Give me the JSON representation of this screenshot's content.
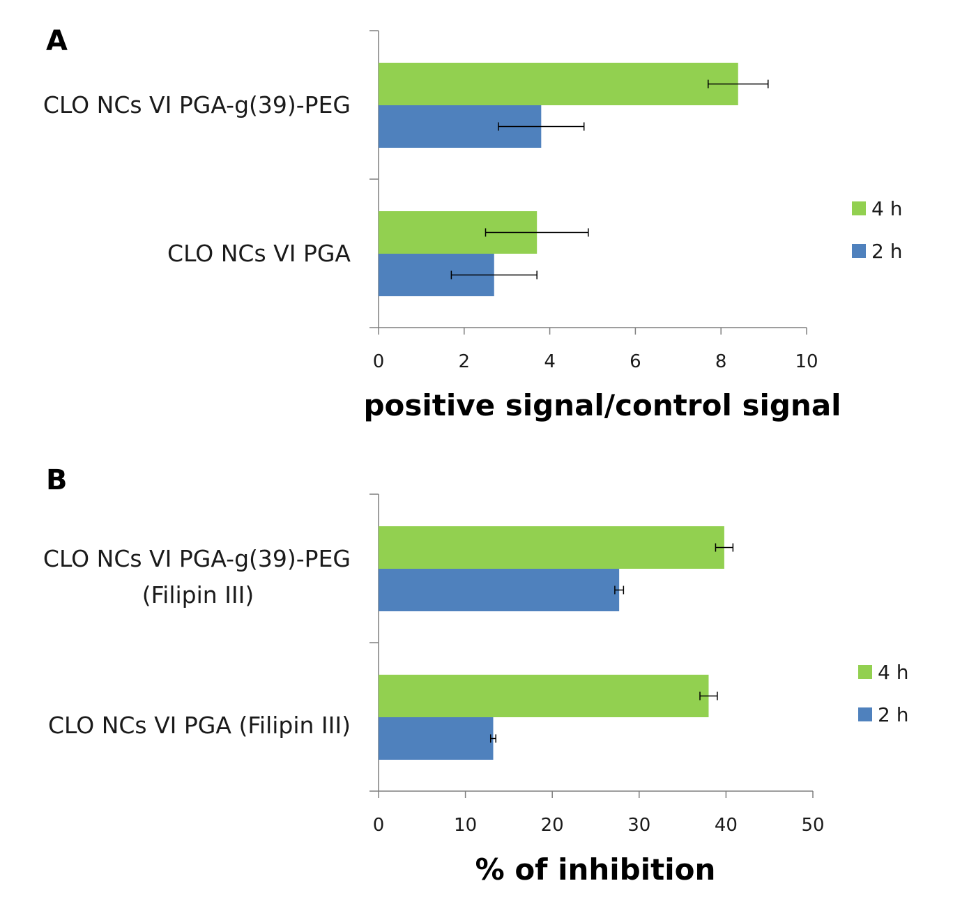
{
  "colors": {
    "series_4h": "#92d050",
    "series_2h": "#4f81bd",
    "axis": "#7f7f7f",
    "error": "#000000"
  },
  "chart_data": [
    {
      "panel": "A",
      "type": "bar",
      "orientation": "horizontal",
      "xlabel": "positive signal/control signal",
      "xlim": [
        0,
        10
      ],
      "xticks": [
        0,
        2,
        4,
        6,
        8,
        10
      ],
      "categories": [
        {
          "lines": [
            "CLO NCs VI PGA-g(39)-PEG"
          ]
        },
        {
          "lines": [
            "CLO NCs VI PGA"
          ]
        }
      ],
      "series": [
        {
          "name": "4 h",
          "color": "#92d050",
          "values": [
            8.4,
            3.7
          ],
          "errors": [
            0.7,
            1.2
          ]
        },
        {
          "name": "2 h",
          "color": "#4f81bd",
          "values": [
            3.8,
            2.7
          ],
          "errors": [
            1.0,
            1.0
          ]
        }
      ],
      "legend": [
        "4 h",
        "2 h"
      ],
      "legend_position": "right"
    },
    {
      "panel": "B",
      "type": "bar",
      "orientation": "horizontal",
      "xlabel": "% of inhibition",
      "xlim": [
        0,
        50
      ],
      "xticks": [
        0,
        10,
        20,
        30,
        40,
        50
      ],
      "categories": [
        {
          "lines": [
            "CLO NCs VI PGA-g(39)-PEG",
            "(Filipin III)"
          ]
        },
        {
          "lines": [
            "CLO NCs VI PGA (Filipin III)"
          ]
        }
      ],
      "series": [
        {
          "name": "4 h",
          "color": "#92d050",
          "values": [
            39.8,
            38.0
          ],
          "errors": [
            1.0,
            1.0
          ]
        },
        {
          "name": "2 h",
          "color": "#4f81bd",
          "values": [
            27.7,
            13.2
          ],
          "errors": [
            0.5,
            0.3
          ]
        }
      ],
      "legend": [
        "4 h",
        "2 h"
      ],
      "legend_position": "right"
    }
  ]
}
